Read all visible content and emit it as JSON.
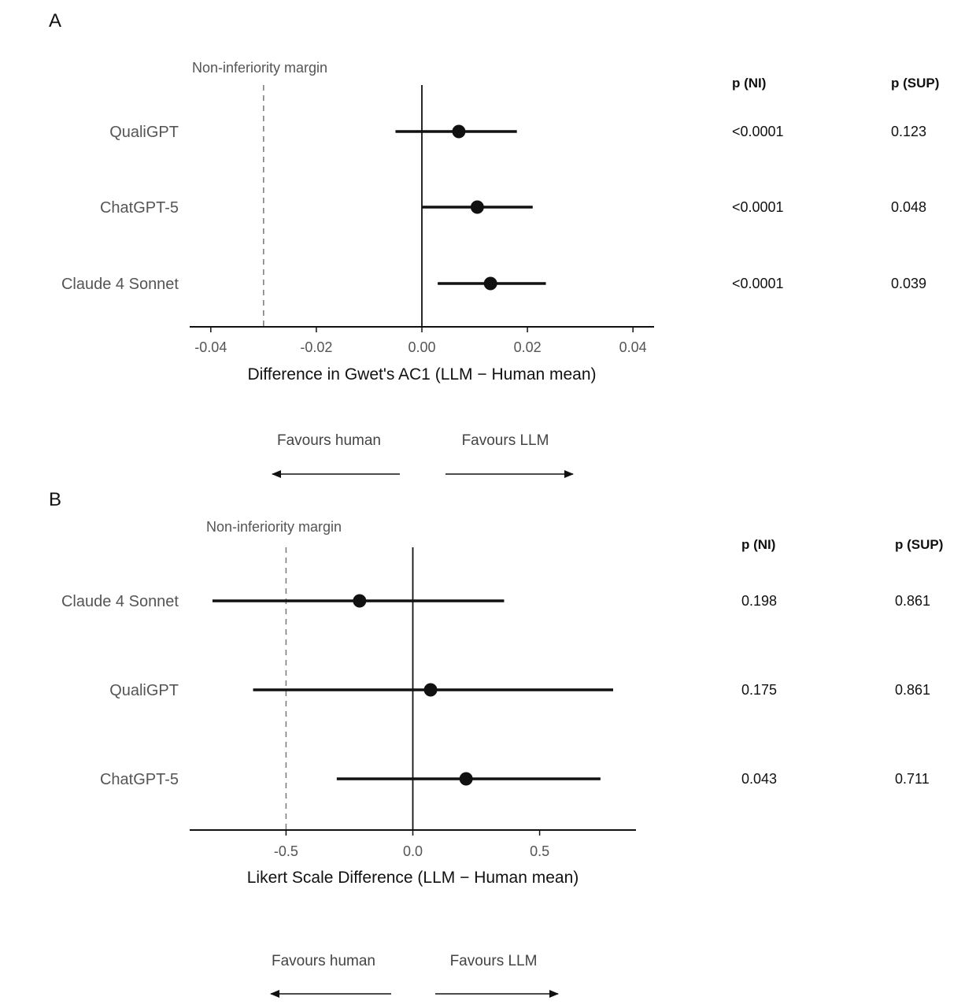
{
  "chart_data": [
    {
      "panel_label": "A",
      "type": "forest",
      "margin_label": "Non-inferiority margin",
      "ni_margin": -0.03,
      "reference_line": 0,
      "xlabel": "Difference in Gwet's AC1 (LLM − Human mean)",
      "xlim": [
        -0.044,
        0.044
      ],
      "xticks": [
        -0.04,
        -0.02,
        0.0,
        0.02,
        0.04
      ],
      "xtick_labels": [
        "-0.04",
        "-0.02",
        "0.00",
        "0.02",
        "0.04"
      ],
      "col_headers": {
        "ni": "p (NI)",
        "sup": "p (SUP)"
      },
      "rows": [
        {
          "label": "QualiGPT",
          "estimate": 0.007,
          "ci_low": -0.005,
          "ci_high": 0.018,
          "p_ni": "<0.0001",
          "p_sup": "0.123"
        },
        {
          "label": "ChatGPT-5",
          "estimate": 0.0105,
          "ci_low": 0.0,
          "ci_high": 0.021,
          "p_ni": "<0.0001",
          "p_sup": "0.048"
        },
        {
          "label": "Claude 4 Sonnet",
          "estimate": 0.013,
          "ci_low": 0.003,
          "ci_high": 0.0235,
          "p_ni": "<0.0001",
          "p_sup": "0.039"
        }
      ],
      "favours": {
        "left": "Favours human",
        "right": "Favours LLM"
      }
    },
    {
      "panel_label": "B",
      "type": "forest",
      "margin_label": "Non-inferiority margin",
      "ni_margin": -0.5,
      "reference_line": 0,
      "xlabel": "Likert Scale Difference (LLM − Human mean)",
      "xlim": [
        -0.88,
        0.88
      ],
      "xticks": [
        -0.5,
        0.0,
        0.5
      ],
      "xtick_labels": [
        "-0.5",
        "0.0",
        "0.5"
      ],
      "col_headers": {
        "ni": "p (NI)",
        "sup": "p (SUP)"
      },
      "rows": [
        {
          "label": "Claude 4 Sonnet",
          "estimate": -0.21,
          "ci_low": -0.79,
          "ci_high": 0.36,
          "p_ni": "0.198",
          "p_sup": "0.861"
        },
        {
          "label": "QualiGPT",
          "estimate": 0.07,
          "ci_low": -0.63,
          "ci_high": 0.79,
          "p_ni": "0.175",
          "p_sup": "0.861"
        },
        {
          "label": "ChatGPT-5",
          "estimate": 0.21,
          "ci_low": -0.3,
          "ci_high": 0.74,
          "p_ni": "0.043",
          "p_sup": "0.711"
        }
      ],
      "favours": {
        "left": "Favours human",
        "right": "Favours LLM"
      }
    }
  ]
}
